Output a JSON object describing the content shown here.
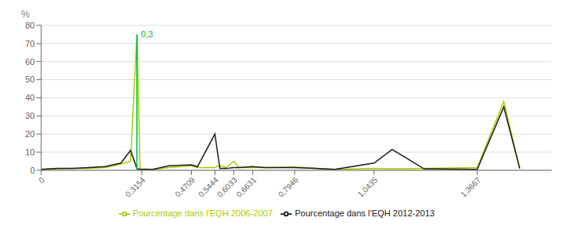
{
  "chart_data": {
    "type": "line",
    "y_label": "%",
    "xlim": [
      0,
      1.6
    ],
    "xticks": [
      0,
      {
        "value": 0.3154,
        "label": "0,3154"
      },
      {
        "value": 0.4709,
        "label": "0,4709"
      },
      {
        "value": 0.5444,
        "label": "0,5444"
      },
      {
        "value": 0.6033,
        "label": "0,6033"
      },
      {
        "value": 0.6631,
        "label": "0,6631"
      },
      {
        "value": 0.7946,
        "label": "0,7946"
      },
      {
        "value": 1.0435,
        "label": "1,0435"
      },
      {
        "value": 1.3667,
        "label": "1,3667"
      }
    ],
    "ylim": [
      0,
      80
    ],
    "yticks": [
      0,
      10,
      20,
      30,
      40,
      50,
      60,
      70,
      80
    ],
    "grid": "y",
    "legend": "bottom",
    "series": [
      {
        "name": "Pourcentage dans l'EQH 2006-2007",
        "color": "#aacc00",
        "x": [
          0.0,
          0.05,
          0.1,
          0.15,
          0.2,
          0.25,
          0.28,
          0.3,
          0.31,
          0.35,
          0.4,
          0.4709,
          0.49,
          0.5444,
          0.56,
          0.58,
          0.6033,
          0.62,
          0.6631,
          0.7,
          0.7946,
          0.86,
          0.92,
          1.0435,
          1.1,
          1.3667,
          1.45,
          1.5
        ],
        "values": [
          0.5,
          0.8,
          1.0,
          1.0,
          1.5,
          3.5,
          5.0,
          75.0,
          0.8,
          0.5,
          1.5,
          2.5,
          1.5,
          1.5,
          2.8,
          1.5,
          5.0,
          1.5,
          1.5,
          1.5,
          1.8,
          1.0,
          0.5,
          1.0,
          0.8,
          1.5,
          38.0,
          1.0
        ]
      },
      {
        "name": "Pourcentage dans l'EQH 2012-2013",
        "color": "#1a1a1a",
        "x": [
          0.0,
          0.05,
          0.1,
          0.15,
          0.2,
          0.25,
          0.28,
          0.3,
          0.31,
          0.35,
          0.4,
          0.4709,
          0.49,
          0.5444,
          0.56,
          0.58,
          0.6033,
          0.62,
          0.6631,
          0.7,
          0.7946,
          0.86,
          0.92,
          1.0435,
          1.1,
          1.2,
          1.3667,
          1.45,
          1.5
        ],
        "values": [
          0.5,
          1.0,
          1.0,
          1.5,
          2.0,
          4.0,
          11.0,
          1.0,
          0.5,
          0.5,
          2.5,
          3.0,
          2.0,
          20.0,
          1.0,
          1.0,
          1.5,
          1.5,
          2.0,
          1.5,
          1.5,
          1.0,
          0.5,
          4.0,
          11.5,
          0.8,
          0.5,
          35.0,
          1.0
        ]
      }
    ],
    "vertical_line": {
      "x": 0.3,
      "y": [
        0,
        75
      ],
      "color": "#00bb44"
    },
    "annotations": [
      {
        "text": "0,3",
        "x": 0.3,
        "y": 75,
        "color": "#00bb44"
      }
    ]
  }
}
